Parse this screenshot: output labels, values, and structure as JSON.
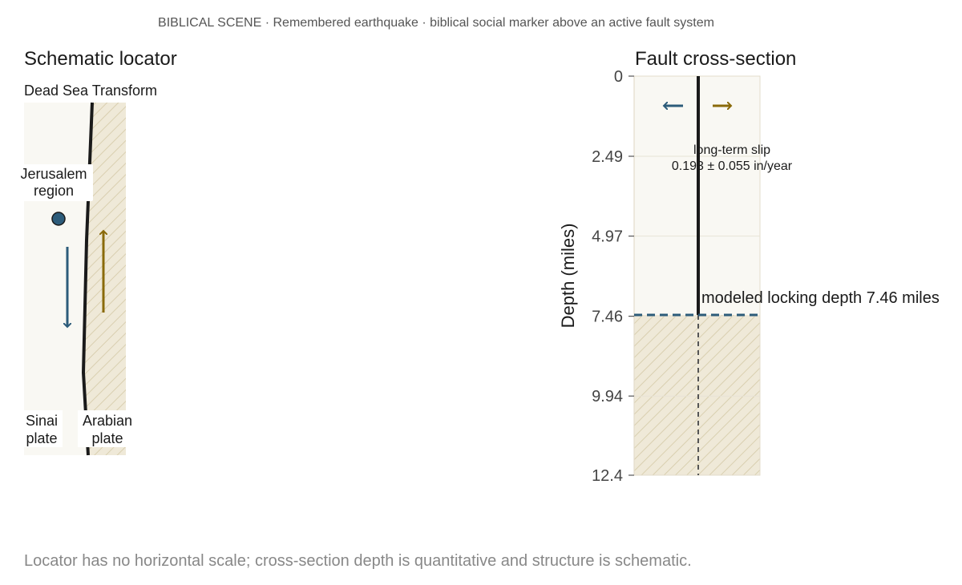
{
  "header": {
    "subtitle": "BIBLICAL SCENE · Remembered earthquake · biblical social marker above an active fault system"
  },
  "locator": {
    "title": "Schematic locator",
    "fault_label": "Dead Sea Transform",
    "city_label_line1": "Jerusalem",
    "city_label_line2": "region",
    "left_plate_line1": "Sinai",
    "left_plate_line2": "plate",
    "right_plate_line1": "Arabian",
    "right_plate_line2": "plate"
  },
  "cross_section": {
    "title": "Fault cross-section",
    "ylabel": "Depth (miles)",
    "slip_label_line1": "long-term slip",
    "slip_label_line2": "0.193 ± 0.055 in/year",
    "locking_label": "modeled locking depth 7.46 miles"
  },
  "footer": {
    "note": "Locator has no horizontal scale; cross-section depth is quantitative and structure is schematic."
  },
  "colors": {
    "sinai_blue": "#2d5c7a",
    "arabian_gold": "#8a6a0a",
    "fault_black": "#1a1a1a",
    "panel_bg": "#f9f8f3",
    "hatch_fill": "#efe9d8",
    "locking_dash": "#2d5c7a"
  },
  "chart_data": {
    "type": "cross-section",
    "title": "Fault cross-section",
    "ylabel": "Depth (miles)",
    "yticks": [
      "0",
      "2.49",
      "4.97",
      "7.46",
      "9.94",
      "12.4"
    ],
    "ylim": [
      0,
      12.4
    ],
    "y_inverted": true,
    "locking_depth": 7.46,
    "slip_rate": 0.193,
    "slip_uncertainty": 0.055,
    "slip_units": "in/year",
    "grid": true
  }
}
